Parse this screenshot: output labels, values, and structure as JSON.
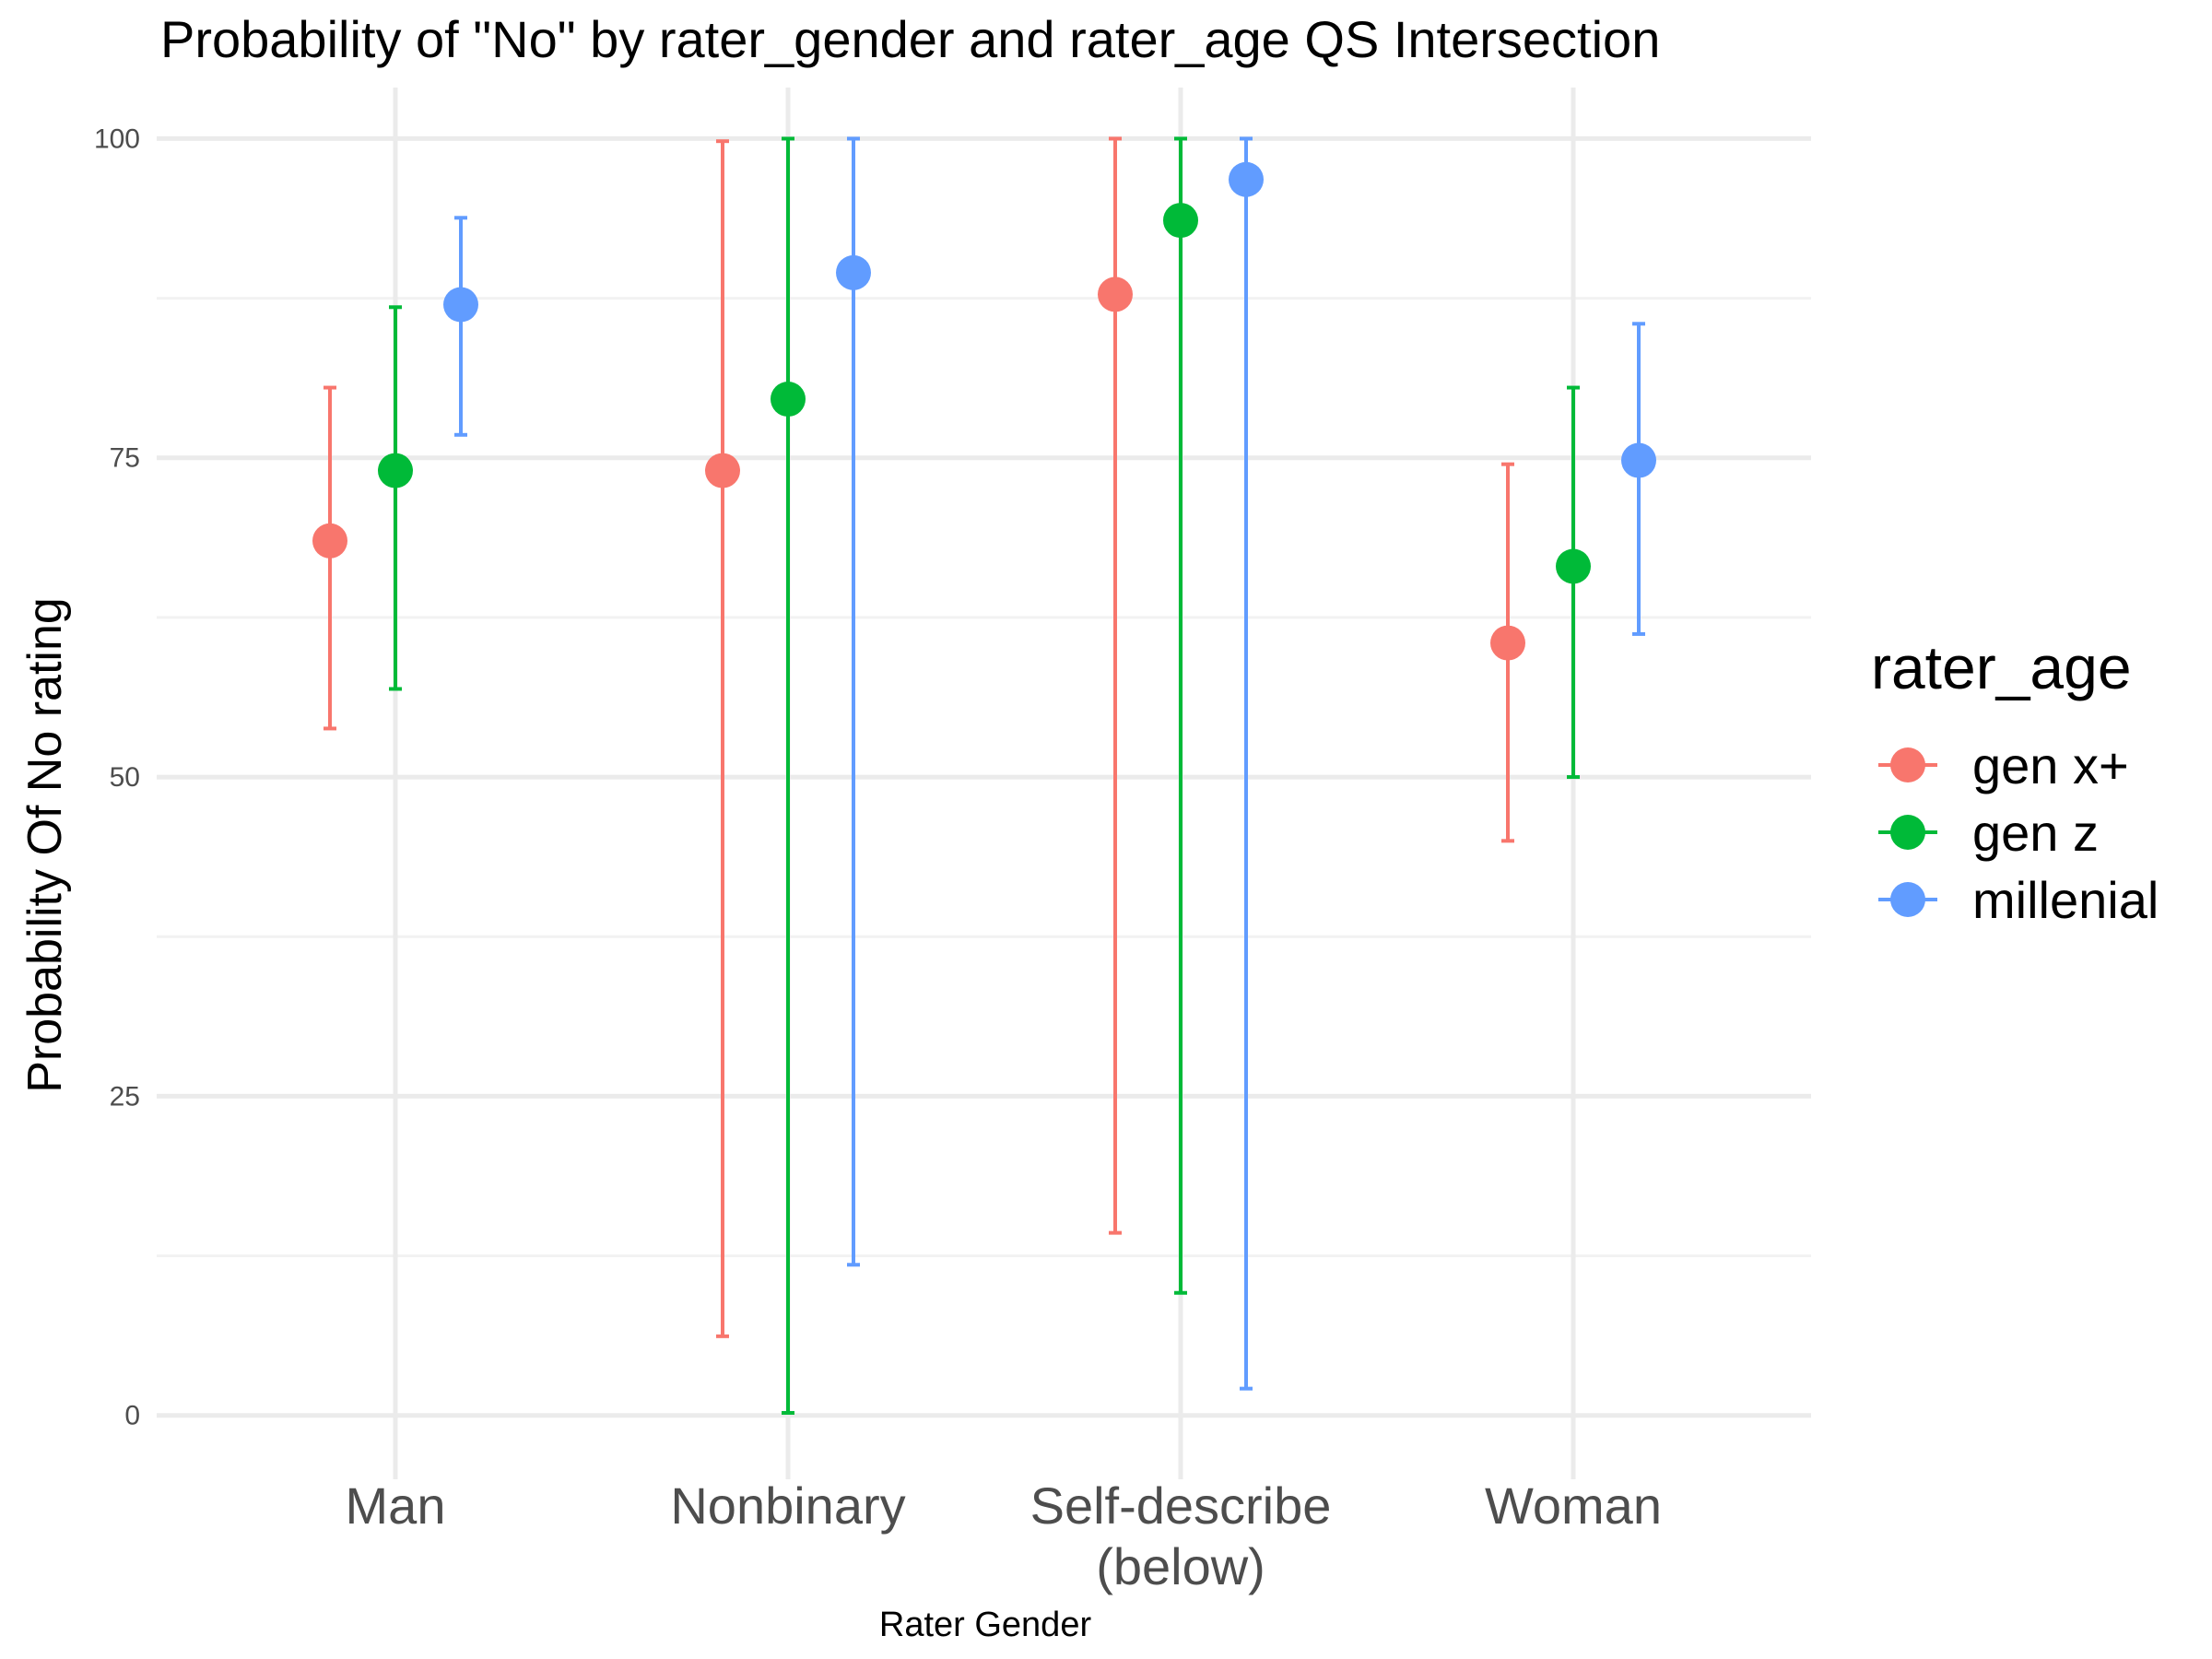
{
  "chart_data": {
    "type": "scatter",
    "title": "Probability of \"No\" by rater_gender and  rater_age  QS Intersection",
    "xlabel": "Rater Gender",
    "ylabel": "Probability Of No rating",
    "categories": [
      "Man",
      "Nonbinary",
      "Self-describe (below)",
      "Woman"
    ],
    "category_label_lines": [
      [
        "Man"
      ],
      [
        "Nonbinary"
      ],
      [
        "Self-describe",
        "(below)"
      ],
      [
        "Woman"
      ]
    ],
    "ylim": [
      -5,
      104
    ],
    "yticks": [
      0,
      25,
      50,
      75,
      100
    ],
    "grid": true,
    "legend": {
      "title": "rater_age",
      "placement": "right"
    },
    "series": [
      {
        "name": "gen x+",
        "color": "#F8766D",
        "values": [
          68.5,
          74,
          87.8,
          60.5
        ],
        "lower": [
          53.8,
          6.2,
          14.3,
          45
        ],
        "upper": [
          80.5,
          99.8,
          100,
          74.5
        ]
      },
      {
        "name": "gen z",
        "color": "#00BA38",
        "values": [
          74,
          79.6,
          93.6,
          66.5
        ],
        "lower": [
          56.9,
          0.2,
          9.6,
          50
        ],
        "upper": [
          86.8,
          100,
          100,
          80.5
        ]
      },
      {
        "name": "millenial",
        "color": "#619CFF",
        "values": [
          87,
          89.5,
          96.8,
          74.8
        ],
        "lower": [
          76.8,
          11.8,
          2.1,
          61.2
        ],
        "upper": [
          93.8,
          100,
          100,
          85.5
        ]
      }
    ]
  }
}
